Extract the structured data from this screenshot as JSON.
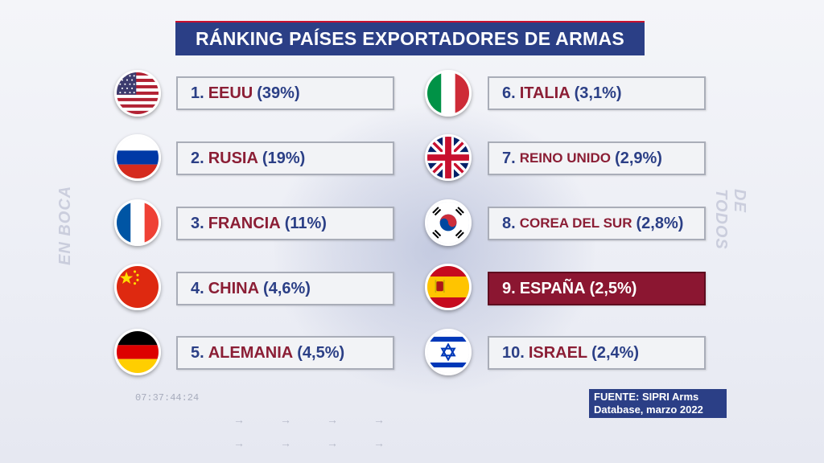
{
  "title": "RÁNKING PAÍSES EXPORTADORES DE ARMAS",
  "background": {
    "left_text": "EN BOCA",
    "right_text": "DE TODOS",
    "timecode": "07:37:44:24",
    "arrows": "→→→→"
  },
  "colors": {
    "title_bg": "#2b3f86",
    "country_name": "#8b1e35",
    "rank_text": "#2b3f86",
    "highlight_bg": "#8b1631"
  },
  "ranking": [
    {
      "rank": "1.",
      "name": "EEUU",
      "share": "(39%)",
      "flag_icon": "usa-flag-icon"
    },
    {
      "rank": "2.",
      "name": "RUSIA",
      "share": "(19%)",
      "flag_icon": "russia-flag-icon"
    },
    {
      "rank": "3.",
      "name": "FRANCIA",
      "share": "(11%)",
      "flag_icon": "france-flag-icon"
    },
    {
      "rank": "4.",
      "name": "CHINA",
      "share": "(4,6%)",
      "flag_icon": "china-flag-icon"
    },
    {
      "rank": "5.",
      "name": "ALEMANIA",
      "share": "(4,5%)",
      "flag_icon": "germany-flag-icon"
    },
    {
      "rank": "6.",
      "name": "ITALIA",
      "share": "(3,1%)",
      "flag_icon": "italy-flag-icon"
    },
    {
      "rank": "7.",
      "name": "REINO UNIDO",
      "share": "(2,9%)",
      "flag_icon": "uk-flag-icon"
    },
    {
      "rank": "8.",
      "name": "COREA DEL SUR",
      "share": "(2,8%)",
      "flag_icon": "south-korea-flag-icon"
    },
    {
      "rank": "9.",
      "name": "ESPAÑA",
      "share": "(2,5%)",
      "flag_icon": "spain-flag-icon",
      "highlighted": true
    },
    {
      "rank": "10.",
      "name": "ISRAEL",
      "share": "(2,4%)",
      "flag_icon": "israel-flag-icon"
    }
  ],
  "source": {
    "line1": "FUENTE: SIPRI Arms",
    "line2": "Database, marzo 2022"
  }
}
